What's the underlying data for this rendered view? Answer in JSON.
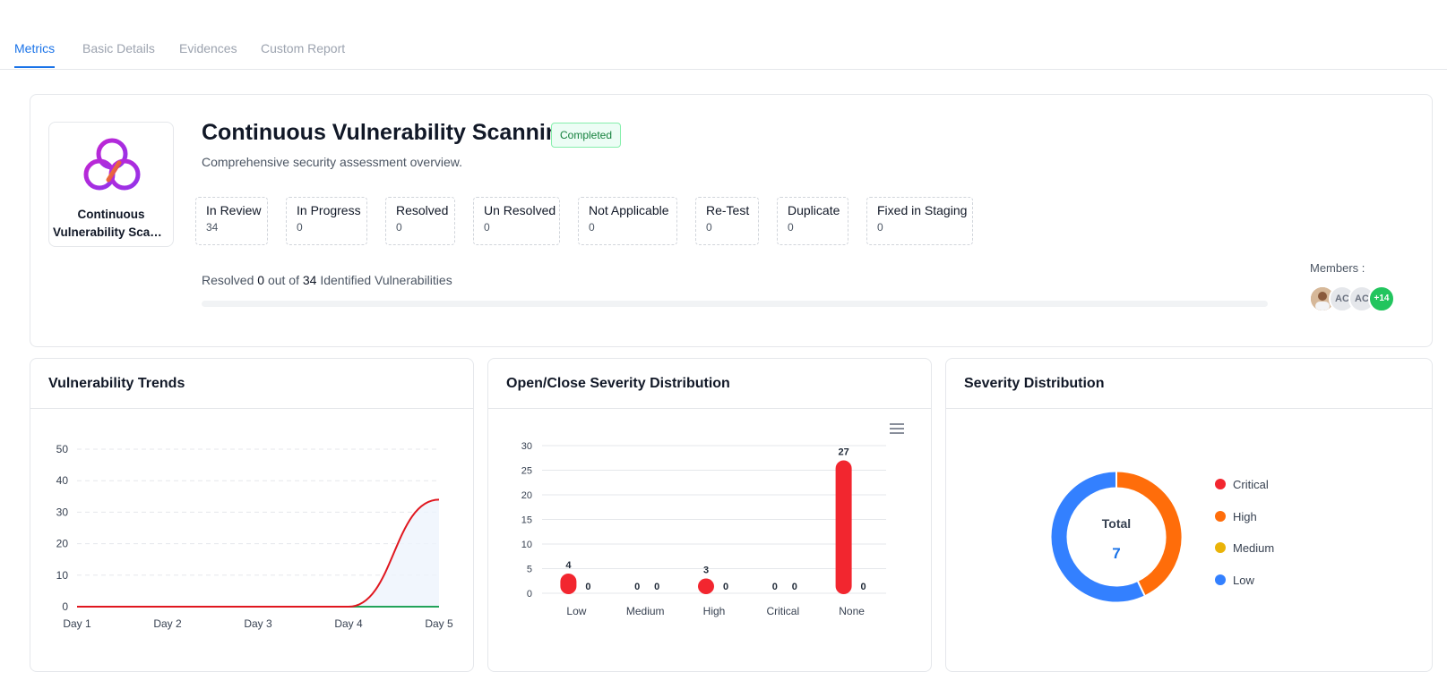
{
  "tabs": [
    {
      "label": "Metrics",
      "active": true
    },
    {
      "label": "Basic Details",
      "active": false
    },
    {
      "label": "Evidences",
      "active": false
    },
    {
      "label": "Custom Report",
      "active": false
    }
  ],
  "project": {
    "logo_label_line1": "Continuous",
    "logo_label_line2": "Vulnerability Scanning",
    "title": "Continuous Vulnerability Scanning",
    "status": "Completed",
    "subtitle": "Comprehensive security assessment overview."
  },
  "stats": [
    {
      "label": "In Review",
      "value": "34"
    },
    {
      "label": "In Progress",
      "value": "0"
    },
    {
      "label": "Resolved",
      "value": "0"
    },
    {
      "label": "Un Resolved",
      "value": "0"
    },
    {
      "label": "Not Applicable",
      "value": "0"
    },
    {
      "label": "Re-Test",
      "value": "0"
    },
    {
      "label": "Duplicate",
      "value": "0"
    },
    {
      "label": "Fixed in Staging",
      "value": "0"
    }
  ],
  "progress": {
    "prefix": "Resolved",
    "resolved": "0",
    "middle": "out of",
    "total": "34",
    "suffix": "Identified Vulnerabilities",
    "fraction": 0
  },
  "members": {
    "label": "Members :",
    "avatars": [
      {
        "type": "photo",
        "text": ""
      },
      {
        "type": "initials",
        "text": "AC"
      },
      {
        "type": "initials",
        "text": "AC"
      },
      {
        "type": "more",
        "text": "+14"
      }
    ]
  },
  "colors": {
    "accent": "#1a73e8",
    "critical": "#f2262f",
    "high": "#ff6d0a",
    "medium": "#eab308",
    "low": "#3380ff",
    "trend_red": "#e0171f",
    "trend_green": "#22a35a"
  },
  "chart_data": [
    {
      "type": "line",
      "title": "Vulnerability Trends",
      "x": [
        "Day 1",
        "Day 2",
        "Day 3",
        "Day 4",
        "Day 5"
      ],
      "ylim": [
        0,
        50
      ],
      "yticks": [
        0,
        10,
        20,
        30,
        40,
        50
      ],
      "grid": true,
      "series": [
        {
          "values": [
            0,
            0,
            0,
            0,
            34
          ],
          "color": "#e0171f"
        },
        {
          "values": [
            0,
            0,
            0,
            0,
            0
          ],
          "color": "#22a35a"
        }
      ]
    },
    {
      "type": "bar",
      "title": "Open/Close Severity Distribution",
      "categories": [
        "Low",
        "Medium",
        "High",
        "Critical",
        "None"
      ],
      "ylim": [
        0,
        30
      ],
      "yticks": [
        0,
        5,
        10,
        15,
        20,
        25,
        30
      ],
      "grid": true,
      "series": [
        {
          "values": [
            4,
            0,
            3,
            0,
            27
          ],
          "color": "#f2262f"
        },
        {
          "values": [
            0,
            0,
            0,
            0,
            0
          ],
          "color": "#22a35a"
        }
      ],
      "menu_icon": "hamburger-icon"
    },
    {
      "type": "pie",
      "title": "Severity Distribution",
      "center_label": "Total",
      "center_value": "7",
      "legend": "right",
      "slices": [
        {
          "label": "Critical",
          "value": 0,
          "color": "#f2262f"
        },
        {
          "label": "High",
          "value": 3,
          "color": "#ff6d0a"
        },
        {
          "label": "Medium",
          "value": 0,
          "color": "#eab308"
        },
        {
          "label": "Low",
          "value": 4,
          "color": "#3380ff"
        }
      ]
    }
  ]
}
